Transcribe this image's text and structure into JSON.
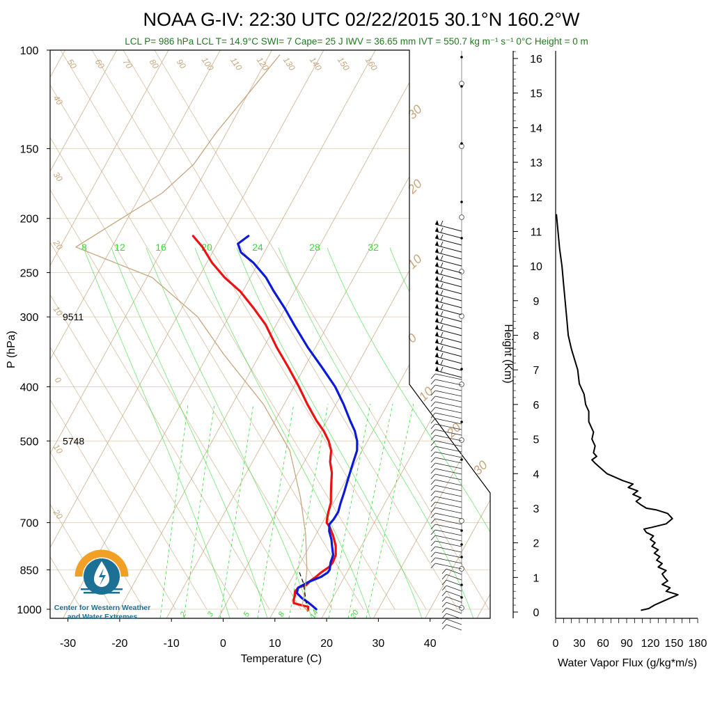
{
  "title": "NOAA G-IV: 22:30 UTC 02/22/2015  30.1°N 160.2°W",
  "subtitle": "LCL P= 986 hPa  LCL T= 14.9°C  SWI= 7  Cape= 25 J  IWV = 36.65 mm  IVT = 550.7 kg m⁻¹ s⁻¹  0°C Height = 0 m",
  "logo_text": [
    "Center for Western Weather",
    "and Water Extremes"
  ],
  "colors": {
    "temperature": "#ee1111",
    "dewpoint": "#0a1ad8",
    "isotherm": "#c8a67e",
    "mixing_ratio": "#33dd33",
    "parcel": "#c8a67e",
    "grid": "#e7d8c0"
  },
  "chart_data": [
    {
      "type": "line",
      "name": "skew-T",
      "xlabel": "Temperature (C)",
      "ylabel": "P (hPa)",
      "x_ticks": [
        -30,
        -20,
        -10,
        0,
        10,
        20,
        30,
        40
      ],
      "y_ticks": [
        100,
        150,
        200,
        250,
        300,
        400,
        500,
        700,
        850,
        1000
      ],
      "ylim": [
        1000,
        100
      ],
      "y_scale": "log",
      "height_notes": [
        {
          "p": 300,
          "label": "9511"
        },
        {
          "p": 500,
          "label": "5748"
        }
      ],
      "dry_adiabat_labels": [
        "50",
        "60",
        "70",
        "80",
        "90",
        "100",
        "110",
        "120",
        "130",
        "140",
        "150",
        "160"
      ],
      "moist_adiabat_labels": [
        "30",
        "20",
        "10",
        "0",
        "10",
        "20",
        "30"
      ],
      "skew_left_labels": [
        "40",
        "30",
        "20",
        "10",
        "0",
        "10",
        "20"
      ],
      "mixing_ratio_top_labels": [
        "8",
        "12",
        "16",
        "20",
        "24",
        "28",
        "32"
      ],
      "mixing_ratio_bottom_labels": [
        "2",
        "3",
        "5",
        "8",
        "14",
        "20"
      ],
      "series": [
        {
          "name": "Temperature",
          "points": [
            [
              16.5,
              1005
            ],
            [
              16.2,
              990
            ],
            [
              15,
              985
            ],
            [
              13,
              975
            ],
            [
              12.6,
              960
            ],
            [
              12.4,
              945
            ],
            [
              12,
              930
            ],
            [
              12.2,
              915
            ],
            [
              13.5,
              905
            ],
            [
              13.8,
              890
            ],
            [
              14.5,
              875
            ],
            [
              15,
              860
            ],
            [
              15.5,
              850
            ],
            [
              16,
              840
            ],
            [
              16.2,
              825
            ],
            [
              16,
              800
            ],
            [
              15,
              770
            ],
            [
              13.5,
              740
            ],
            [
              12,
              715
            ],
            [
              10.8,
              700
            ],
            [
              10.5,
              690
            ],
            [
              10,
              670
            ],
            [
              9.5,
              645
            ],
            [
              8.5,
              620
            ],
            [
              7.5,
              595
            ],
            [
              6.5,
              570
            ],
            [
              5,
              545
            ],
            [
              4,
              520
            ],
            [
              2.5,
              500
            ],
            [
              0.5,
              480
            ],
            [
              -2,
              460
            ],
            [
              -5.5,
              430
            ],
            [
              -9,
              400
            ],
            [
              -13,
              370
            ],
            [
              -17.5,
              340
            ],
            [
              -22,
              310
            ],
            [
              -26,
              290
            ],
            [
              -30.5,
              270
            ],
            [
              -35,
              255
            ],
            [
              -39,
              240
            ],
            [
              -42.5,
              225
            ],
            [
              -45.5,
              215
            ]
          ]
        },
        {
          "name": "Dewpoint",
          "points": [
            [
              18,
              1000
            ],
            [
              16.8,
              985
            ],
            [
              15.5,
              970
            ],
            [
              14,
              955
            ],
            [
              12.5,
              935
            ],
            [
              12.2,
              915
            ],
            [
              13.5,
              895
            ],
            [
              15.5,
              875
            ],
            [
              16.3,
              860
            ],
            [
              16.4,
              850
            ],
            [
              15.8,
              825
            ],
            [
              15.5,
              800
            ],
            [
              14.5,
              775
            ],
            [
              13.5,
              750
            ],
            [
              12.2,
              725
            ],
            [
              11.5,
              705
            ],
            [
              11.8,
              690
            ],
            [
              11.9,
              670
            ],
            [
              11.4,
              645
            ],
            [
              11,
              620
            ],
            [
              10.5,
              595
            ],
            [
              10,
              570
            ],
            [
              9.5,
              545
            ],
            [
              9,
              520
            ],
            [
              8,
              500
            ],
            [
              6.5,
              480
            ],
            [
              4.5,
              460
            ],
            [
              1.5,
              430
            ],
            [
              -2,
              400
            ],
            [
              -6.5,
              370
            ],
            [
              -11.5,
              340
            ],
            [
              -16.5,
              310
            ],
            [
              -20,
              290
            ],
            [
              -24,
              270
            ],
            [
              -27,
              255
            ],
            [
              -31,
              240
            ],
            [
              -34.5,
              230
            ],
            [
              -36,
              222
            ],
            [
              -34.8,
              215
            ]
          ]
        },
        {
          "name": "Parcel",
          "points": [
            [
              16.5,
              1005
            ],
            [
              14.9,
              986
            ],
            [
              14,
              935
            ],
            [
              12,
              850
            ],
            [
              8,
              735
            ],
            [
              3,
              630
            ],
            [
              -4,
              520
            ],
            [
              -14,
              430
            ],
            [
              -27,
              350
            ],
            [
              -36,
              300
            ],
            [
              -49,
              255
            ],
            [
              -67,
              225
            ],
            [
              -56,
              180
            ],
            [
              -53,
              160
            ],
            [
              -52,
              140
            ],
            [
              -50,
              120
            ],
            [
              -48,
              102
            ]
          ]
        }
      ]
    },
    {
      "type": "line",
      "name": "water vapor flux profile",
      "xlabel": "Water Vapor Flux (g/kg*m/s)",
      "ylabel": "Height (Km)",
      "x_ticks": [
        0,
        30,
        60,
        90,
        120,
        150,
        180
      ],
      "y_ticks": [
        0,
        1,
        2,
        3,
        4,
        5,
        6,
        7,
        8,
        9,
        10,
        11,
        12,
        13,
        14,
        15,
        16
      ],
      "xlim": [
        0,
        180
      ],
      "ylim": [
        0,
        16
      ],
      "points": [
        [
          108,
          0.05
        ],
        [
          118,
          0.1
        ],
        [
          125,
          0.2
        ],
        [
          135,
          0.3
        ],
        [
          145,
          0.4
        ],
        [
          155,
          0.5
        ],
        [
          148,
          0.55
        ],
        [
          140,
          0.6
        ],
        [
          145,
          0.7
        ],
        [
          135,
          0.8
        ],
        [
          142,
          0.9
        ],
        [
          138,
          1.0
        ],
        [
          135,
          1.1
        ],
        [
          140,
          1.2
        ],
        [
          130,
          1.3
        ],
        [
          135,
          1.4
        ],
        [
          128,
          1.5
        ],
        [
          132,
          1.6
        ],
        [
          125,
          1.7
        ],
        [
          130,
          1.8
        ],
        [
          122,
          1.9
        ],
        [
          126,
          2.0
        ],
        [
          120,
          2.1
        ],
        [
          124,
          2.2
        ],
        [
          115,
          2.3
        ],
        [
          112,
          2.4
        ],
        [
          122,
          2.45
        ],
        [
          140,
          2.55
        ],
        [
          148,
          2.7
        ],
        [
          142,
          2.85
        ],
        [
          128,
          2.95
        ],
        [
          115,
          3.0
        ],
        [
          108,
          3.1
        ],
        [
          102,
          3.2
        ],
        [
          108,
          3.3
        ],
        [
          98,
          3.4
        ],
        [
          104,
          3.5
        ],
        [
          92,
          3.6
        ],
        [
          98,
          3.7
        ],
        [
          85,
          3.8
        ],
        [
          75,
          3.9
        ],
        [
          65,
          4.0
        ],
        [
          60,
          4.1
        ],
        [
          55,
          4.2
        ],
        [
          50,
          4.3
        ],
        [
          46,
          4.4
        ],
        [
          52,
          4.5
        ],
        [
          48,
          4.6
        ],
        [
          50,
          4.8
        ],
        [
          46,
          5.0
        ],
        [
          48,
          5.2
        ],
        [
          42,
          5.5
        ],
        [
          42,
          5.8
        ],
        [
          38,
          6.0
        ],
        [
          36,
          6.3
        ],
        [
          30,
          6.6
        ],
        [
          28,
          7.0
        ],
        [
          24,
          7.3
        ],
        [
          20,
          7.6
        ],
        [
          16,
          8.0
        ],
        [
          14,
          8.5
        ],
        [
          12,
          9.0
        ],
        [
          10,
          9.5
        ],
        [
          8,
          10.0
        ],
        [
          5,
          10.5
        ],
        [
          3,
          11.0
        ],
        [
          1,
          11.5
        ]
      ]
    }
  ]
}
